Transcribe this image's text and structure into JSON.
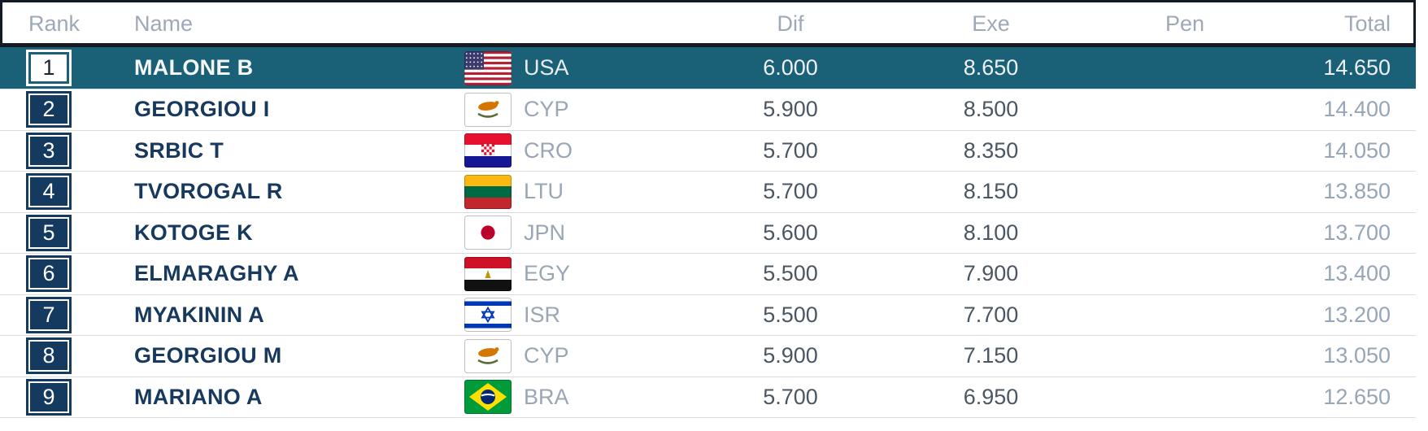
{
  "colors": {
    "highlight_row_bg": "#1a6178",
    "rank_badge_bg": "#143a5f",
    "header_border": "#141a24",
    "name_text": "#17395e",
    "value_text": "#4b5663",
    "total_text": "#97a5b9",
    "header_text": "#9ea9b8"
  },
  "table": {
    "header": {
      "rank": "Rank",
      "name": "Name",
      "dif": "Dif",
      "exe": "Exe",
      "pen": "Pen",
      "total": "Total"
    },
    "rows": [
      {
        "rank": "1",
        "name": "MALONE B",
        "country": "USA",
        "dif": "6.000",
        "exe": "8.650",
        "pen": "",
        "total": "14.650",
        "highlighted": true
      },
      {
        "rank": "2",
        "name": "GEORGIOU I",
        "country": "CYP",
        "dif": "5.900",
        "exe": "8.500",
        "pen": "",
        "total": "14.400",
        "highlighted": false
      },
      {
        "rank": "3",
        "name": "SRBIC T",
        "country": "CRO",
        "dif": "5.700",
        "exe": "8.350",
        "pen": "",
        "total": "14.050",
        "highlighted": false
      },
      {
        "rank": "4",
        "name": "TVOROGAL R",
        "country": "LTU",
        "dif": "5.700",
        "exe": "8.150",
        "pen": "",
        "total": "13.850",
        "highlighted": false
      },
      {
        "rank": "5",
        "name": "KOTOGE K",
        "country": "JPN",
        "dif": "5.600",
        "exe": "8.100",
        "pen": "",
        "total": "13.700",
        "highlighted": false
      },
      {
        "rank": "6",
        "name": "ELMARAGHY A",
        "country": "EGY",
        "dif": "5.500",
        "exe": "7.900",
        "pen": "",
        "total": "13.400",
        "highlighted": false
      },
      {
        "rank": "7",
        "name": "MYAKININ A",
        "country": "ISR",
        "dif": "5.500",
        "exe": "7.700",
        "pen": "",
        "total": "13.200",
        "highlighted": false
      },
      {
        "rank": "8",
        "name": "GEORGIOU M",
        "country": "CYP",
        "dif": "5.900",
        "exe": "7.150",
        "pen": "",
        "total": "13.050",
        "highlighted": false
      },
      {
        "rank": "9",
        "name": "MARIANO A",
        "country": "BRA",
        "dif": "5.700",
        "exe": "6.950",
        "pen": "",
        "total": "12.650",
        "highlighted": false
      }
    ]
  }
}
